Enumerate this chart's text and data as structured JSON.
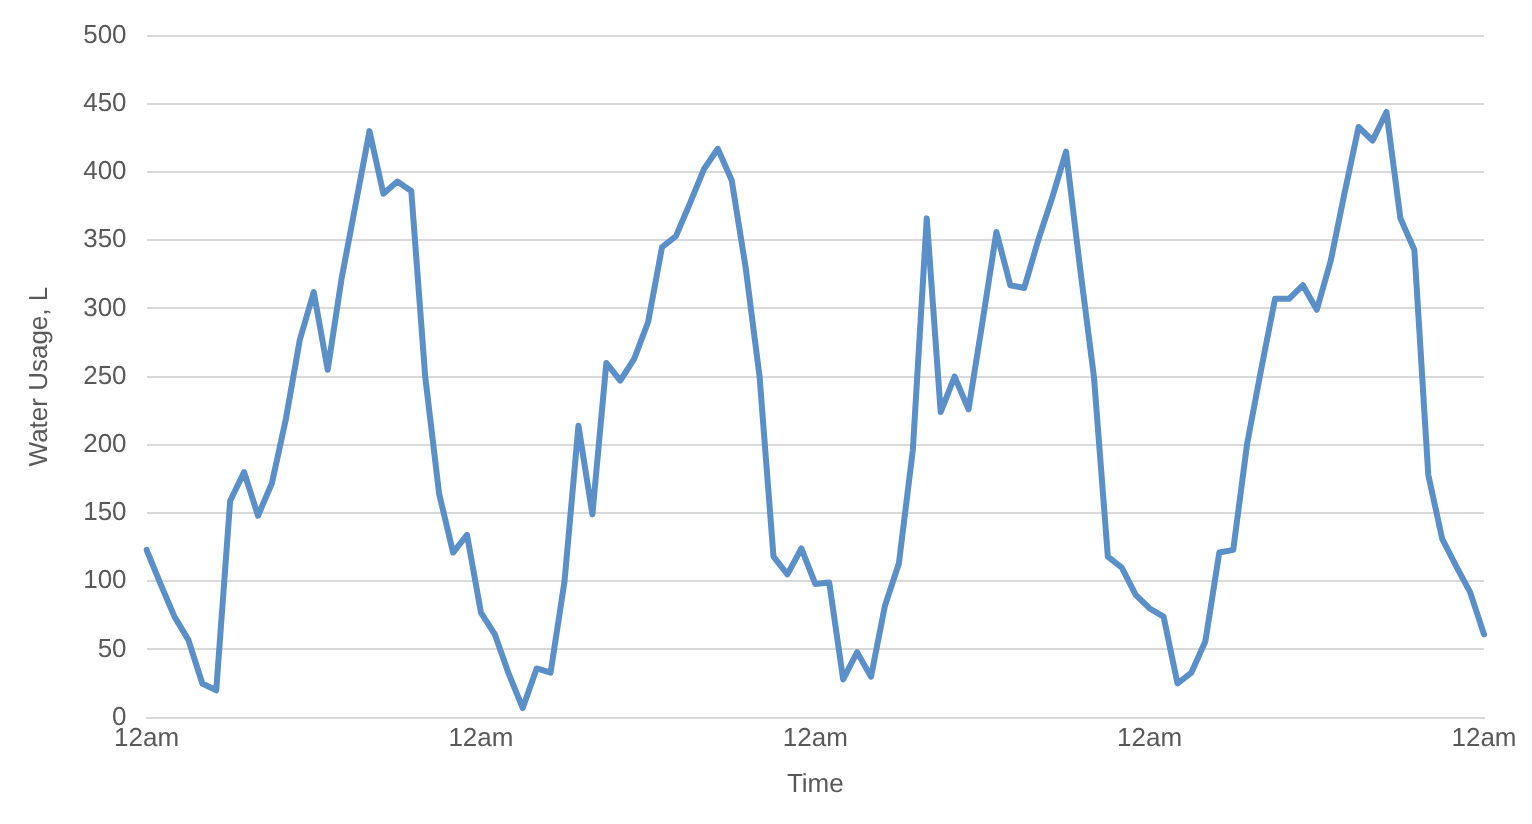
{
  "chart_data": {
    "type": "line",
    "xlabel": "Time",
    "ylabel": "Water Usage, L",
    "categories": [
      "12am",
      null,
      null,
      null,
      null,
      null,
      null,
      null,
      null,
      null,
      null,
      null,
      null,
      null,
      null,
      null,
      null,
      null,
      null,
      null,
      null,
      null,
      null,
      null,
      "12am",
      null,
      null,
      null,
      null,
      null,
      null,
      null,
      null,
      null,
      null,
      null,
      null,
      null,
      null,
      null,
      null,
      null,
      null,
      null,
      null,
      null,
      null,
      null,
      "12am",
      null,
      null,
      null,
      null,
      null,
      null,
      null,
      null,
      null,
      null,
      null,
      null,
      null,
      null,
      null,
      null,
      null,
      null,
      null,
      null,
      null,
      null,
      null,
      "12am",
      null,
      null,
      null,
      null,
      null,
      null,
      null,
      null,
      null,
      null,
      null,
      null,
      null,
      null,
      null,
      null,
      null,
      null,
      null,
      null,
      null,
      null,
      null,
      "12am"
    ],
    "ylim": [
      0,
      500
    ],
    "yticks": [
      0,
      50,
      100,
      150,
      200,
      250,
      300,
      350,
      400,
      450,
      500
    ],
    "grid": "y",
    "legend": false,
    "marker": "none",
    "line_style": "solid",
    "series": [
      {
        "color": "#5b8fc7",
        "values": [
          123,
          98,
          74,
          57,
          25,
          20,
          159,
          180,
          148,
          172,
          219,
          277,
          312,
          255,
          322,
          376,
          430,
          384,
          393,
          386,
          250,
          164,
          121,
          134,
          77,
          61,
          32,
          7,
          36,
          33,
          100,
          214,
          149,
          260,
          247,
          263,
          290,
          345,
          353,
          377,
          402,
          417,
          394,
          330,
          250,
          118,
          105,
          124,
          98,
          99,
          28,
          48,
          30,
          82,
          113,
          196,
          366,
          224,
          250,
          226,
          290,
          356,
          317,
          315,
          350,
          381,
          415,
          330,
          250,
          118,
          110,
          90,
          80,
          74,
          25,
          33,
          56,
          121,
          123,
          201,
          255,
          307,
          307,
          317,
          299,
          335,
          385,
          433,
          423,
          444,
          366,
          343,
          178,
          131,
          111,
          92,
          61
        ]
      }
    ]
  }
}
